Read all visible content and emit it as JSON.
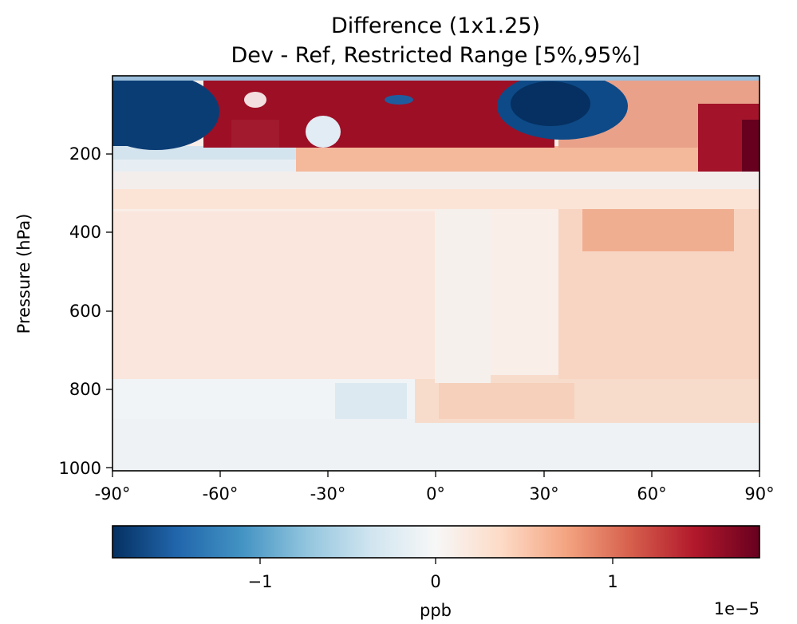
{
  "chart_data": {
    "type": "heatmap",
    "title_line1": "Difference (1x1.25)",
    "title_line2": "Dev - Ref, Restricted Range [5%,95%]",
    "xlabel": "",
    "ylabel": "Pressure (hPa)",
    "x_ticks": [
      "-90°",
      "-60°",
      "-30°",
      "0°",
      "30°",
      "60°",
      "90°"
    ],
    "y_ticks": [
      "200",
      "400",
      "600",
      "800",
      "1000"
    ],
    "xlim": [
      -90,
      90
    ],
    "ylim_pressure": [
      1000,
      0
    ],
    "colorbar": {
      "label": "ppb",
      "ticks": [
        "−1",
        "0",
        "1"
      ],
      "multiplier": "1e−5",
      "range": [
        -1.85,
        1.85
      ],
      "colormap": "RdBu_r"
    },
    "colors": {
      "negative_extreme": "#053061",
      "neutral": "#f7f7f7",
      "positive_extreme": "#67001f"
    }
  }
}
